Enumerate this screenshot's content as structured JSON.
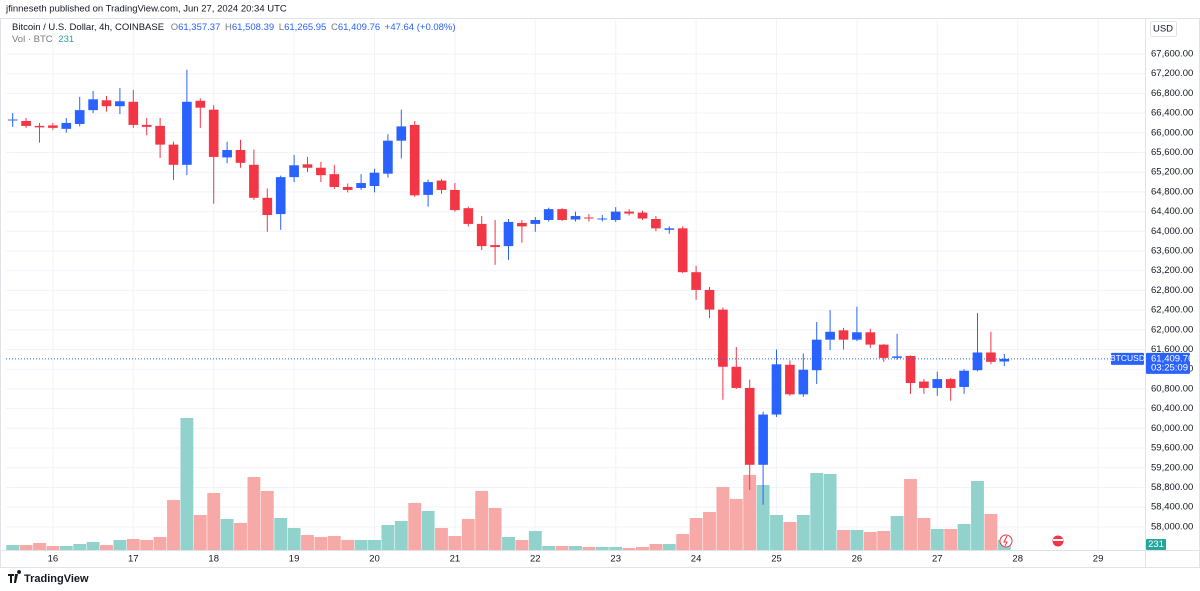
{
  "header": {
    "text": "jfinneseth published on TradingView.com, Jun 27, 2024 20:34 UTC"
  },
  "chart_data": {
    "type": "candlestick",
    "symbol": "Bitcoin / U.S. Dollar, 4h, COINBASE",
    "ohlc_legend": [
      {
        "key": "O",
        "value": "61,357.37"
      },
      {
        "key": "H",
        "value": "61,508.39"
      },
      {
        "key": "L",
        "value": "61,265.95"
      },
      {
        "key": "C",
        "value": "61,409.76"
      }
    ],
    "change": "+47.64 (+0.08%)",
    "volume_legend": {
      "label": "Vol · BTC",
      "value": "231"
    },
    "currency": "USD",
    "series": [
      {
        "name": "BTCUSD",
        "up_color": "#2962ff",
        "down_color": "#f23645",
        "open": [
          66260,
          66240,
          66140,
          66150,
          66080,
          66180,
          66460,
          66660,
          66540,
          66630,
          66160,
          66140,
          65760,
          65350,
          66650,
          66470,
          65500,
          65650,
          65350,
          64680,
          64350,
          65100,
          65360,
          65290,
          65160,
          64900,
          64880,
          64920,
          65170,
          65840,
          66160,
          64740,
          65030,
          64840,
          64470,
          64150,
          63720,
          63700,
          64170,
          64150,
          64230,
          64450,
          64240,
          64280,
          64250,
          64230,
          64400,
          64380,
          64250,
          64030,
          64060,
          63170,
          62810,
          62410,
          61250,
          60820,
          59260,
          60280,
          61290,
          60690,
          61180,
          61800,
          61990,
          61800,
          61950,
          61700,
          61430,
          61470,
          60950,
          60820,
          61000,
          60840,
          61180,
          61540,
          61357.37
        ],
        "high": [
          66400,
          66300,
          66200,
          66200,
          66300,
          66730,
          66850,
          66750,
          66910,
          66870,
          66300,
          66300,
          65820,
          67280,
          66700,
          66560,
          65820,
          65860,
          65660,
          64870,
          65130,
          65550,
          65510,
          65410,
          65350,
          64970,
          65160,
          65270,
          65970,
          66470,
          66240,
          65050,
          65060,
          64980,
          64500,
          64310,
          64230,
          64250,
          64230,
          64290,
          64480,
          64470,
          64400,
          64350,
          64330,
          64490,
          64450,
          64420,
          64310,
          64100,
          64100,
          63300,
          62870,
          62450,
          61650,
          60990,
          60340,
          61600,
          61380,
          61520,
          62160,
          62400,
          62040,
          62470,
          62020,
          61710,
          61920,
          61480,
          61000,
          61150,
          61020,
          61200,
          62340,
          61960,
          61508.39
        ],
        "low": [
          66120,
          66100,
          65800,
          66060,
          66000,
          66130,
          66400,
          66430,
          66380,
          66100,
          65950,
          65490,
          65040,
          65140,
          66100,
          64560,
          65380,
          65290,
          64640,
          63990,
          64030,
          65000,
          65200,
          65000,
          64860,
          64790,
          64840,
          64790,
          65090,
          65480,
          64700,
          64500,
          64760,
          64400,
          64100,
          63620,
          63320,
          63420,
          63770,
          63990,
          64200,
          64210,
          64200,
          64200,
          64200,
          64190,
          64320,
          64230,
          64000,
          63950,
          63150,
          62610,
          62240,
          60580,
          60800,
          58750,
          58450,
          60230,
          60660,
          60640,
          60900,
          61590,
          61600,
          61770,
          61630,
          61350,
          61390,
          60700,
          60700,
          60660,
          60560,
          60700,
          61160,
          61300,
          61265.95
        ],
        "close": [
          66270,
          66140,
          66110,
          66100,
          66200,
          66460,
          66680,
          66540,
          66640,
          66160,
          66120,
          65760,
          65350,
          66630,
          66510,
          65510,
          65650,
          65390,
          64680,
          64330,
          65100,
          65340,
          65290,
          65140,
          64900,
          64840,
          64980,
          65190,
          65840,
          66130,
          64730,
          65000,
          64840,
          64430,
          64150,
          63700,
          63680,
          64190,
          64100,
          64230,
          64450,
          64230,
          64310,
          64270,
          64260,
          64400,
          64360,
          64260,
          64060,
          64060,
          63170,
          62810,
          62410,
          61250,
          60820,
          59260,
          60280,
          61300,
          60690,
          61190,
          61800,
          61960,
          61800,
          61950,
          61700,
          61430,
          61460,
          60920,
          60820,
          61000,
          60820,
          61170,
          61540,
          61350,
          61409.76
        ],
        "last_label": "61,409.76",
        "countdown": "03:25:09"
      }
    ],
    "volume": {
      "up_color": "#92d2cc",
      "down_color": "#f7a9a7",
      "last_label": "231",
      "values": [
        115,
        115,
        161,
        92,
        92,
        138,
        184,
        115,
        230,
        253,
        230,
        299,
        1150,
        3036,
        805,
        1311,
        713,
        621,
        1679,
        1357,
        736,
        506,
        345,
        299,
        322,
        230,
        230,
        230,
        575,
        667,
        1081,
        897,
        506,
        322,
        713,
        1357,
        966,
        299,
        230,
        437,
        92,
        92,
        92,
        69,
        69,
        69,
        46,
        69,
        138,
        138,
        368,
        736,
        874,
        1449,
        1173,
        1725,
        1495,
        805,
        644,
        805,
        1771,
        1748,
        460,
        460,
        414,
        437,
        782,
        1633,
        736,
        483,
        483,
        598,
        1587,
        828,
        231
      ]
    },
    "xlim": [
      -0.5,
      84.5
    ],
    "xticks": [
      {
        "value": 3,
        "label": "16"
      },
      {
        "value": 9,
        "label": "17"
      },
      {
        "value": 15,
        "label": "18"
      },
      {
        "value": 21,
        "label": "19"
      },
      {
        "value": 27,
        "label": "20"
      },
      {
        "value": 33,
        "label": "21"
      },
      {
        "value": 39,
        "label": "22"
      },
      {
        "value": 45,
        "label": "23"
      },
      {
        "value": 51,
        "label": "24"
      },
      {
        "value": 57,
        "label": "25"
      },
      {
        "value": 63,
        "label": "26"
      },
      {
        "value": 69,
        "label": "27"
      },
      {
        "value": 75,
        "label": "28"
      },
      {
        "value": 81,
        "label": "29"
      }
    ],
    "ylim": [
      57530,
      68290
    ],
    "yticks": [
      {
        "value": 58000,
        "label": "58,000.00"
      },
      {
        "value": 58400,
        "label": "58,400.00"
      },
      {
        "value": 58800,
        "label": "58,800.00"
      },
      {
        "value": 59200,
        "label": "59,200.00"
      },
      {
        "value": 59600,
        "label": "59,600.00"
      },
      {
        "value": 60000,
        "label": "60,000.00"
      },
      {
        "value": 60400,
        "label": "60,400.00"
      },
      {
        "value": 60800,
        "label": "60,800.00"
      },
      {
        "value": 61200,
        "label": "61,200.00"
      },
      {
        "value": 61600,
        "label": "61,600.00"
      },
      {
        "value": 62000,
        "label": "62,000.00"
      },
      {
        "value": 62400,
        "label": "62,400.00"
      },
      {
        "value": 62800,
        "label": "62,800.00"
      },
      {
        "value": 63200,
        "label": "63,200.00"
      },
      {
        "value": 63600,
        "label": "63,600.00"
      },
      {
        "value": 64000,
        "label": "64,000.00"
      },
      {
        "value": 64400,
        "label": "64,400.00"
      },
      {
        "value": 64800,
        "label": "64,800.00"
      },
      {
        "value": 65200,
        "label": "65,200.00"
      },
      {
        "value": 65600,
        "label": "65,600.00"
      },
      {
        "value": 66000,
        "label": "66,000.00"
      },
      {
        "value": 66400,
        "label": "66,400.00"
      },
      {
        "value": 66800,
        "label": "66,800.00"
      },
      {
        "value": 67200,
        "label": "67,200.00"
      },
      {
        "value": 67600,
        "label": "67,600.00"
      }
    ],
    "grid": true
  },
  "footer": {
    "brand": "TradingView"
  }
}
